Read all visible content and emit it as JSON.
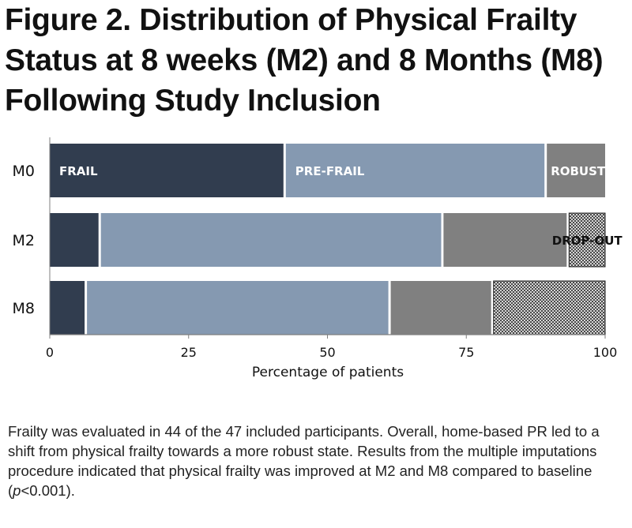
{
  "title": "Figure 2. Distribution of Physical Frailty Status at 8 weeks (M2) and 8 Months (M8) Following Study Inclusion",
  "caption": {
    "text_before": "Frailty was evaluated in 44 of the 47 included participants. Overall, home-based PR led to a shift from physical frailty towards a more robust state. Results from the multiple imputations procedure indicated that physical frailty was improved at M2 and M8 compared to baseline (",
    "p_symbol": "p",
    "text_after": "<0.001)."
  },
  "colors": {
    "frail": "#313d4f",
    "pre_frail": "#8599b1",
    "robust": "#808080",
    "drop_out_hatch": "#2e2e2e"
  },
  "chart_data": {
    "type": "bar",
    "orientation": "horizontal",
    "stacked": true,
    "categories": [
      "M0",
      "M2",
      "M8"
    ],
    "series": [
      {
        "name": "FRAIL",
        "key": "frail",
        "values": [
          42.5,
          9.2,
          6.7
        ]
      },
      {
        "name": "PRE-FRAIL",
        "key": "pre_frail",
        "values": [
          47.0,
          61.7,
          54.7
        ]
      },
      {
        "name": "ROBUST",
        "key": "robust",
        "values": [
          10.5,
          22.6,
          18.5
        ]
      },
      {
        "name": "DROP-OUT",
        "key": "drop_out",
        "values": [
          0,
          6.5,
          20.1
        ]
      }
    ],
    "xlabel": "Percentage of patients",
    "ylabel": "",
    "xlim": [
      0,
      100
    ],
    "xticks": [
      0,
      25,
      50,
      75,
      100
    ],
    "legend": "inside-bars"
  }
}
